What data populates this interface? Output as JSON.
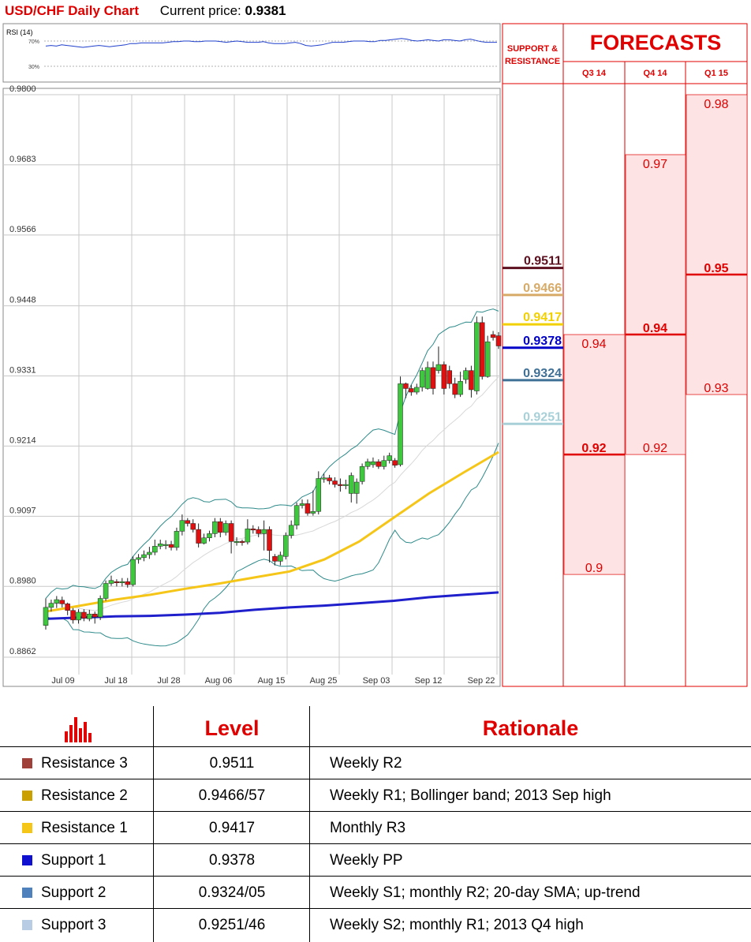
{
  "header": {
    "title": "USD/CHF Daily Chart",
    "price_label": "Current price:",
    "price": "0.9381"
  },
  "rsi": {
    "label": "RSI (14)",
    "levels": [
      "70%",
      "30%"
    ],
    "values": [
      62,
      63,
      62,
      64,
      63,
      62,
      61,
      60,
      61,
      62,
      63,
      62,
      61,
      62,
      63,
      64,
      66,
      66,
      67,
      67,
      67,
      67,
      67,
      68,
      69,
      69,
      70,
      70,
      69,
      69,
      70,
      70,
      70,
      69,
      68,
      69,
      70,
      69,
      68,
      68,
      68,
      69,
      67,
      66,
      66,
      66,
      67,
      68,
      66,
      63,
      62,
      63,
      64,
      66,
      68,
      68,
      68,
      69,
      70,
      70,
      70,
      69,
      69,
      71,
      71,
      72,
      73,
      74,
      73,
      71,
      70,
      71,
      72,
      71,
      70,
      72,
      72,
      71,
      70,
      72,
      73,
      71,
      69,
      68,
      68,
      68
    ]
  },
  "chart_data": {
    "type": "candlestick",
    "title": "USD/CHF Daily Chart",
    "y_ticks": [
      "0.9800",
      "0.9683",
      "0.9566",
      "0.9448",
      "0.9331",
      "0.9214",
      "0.9097",
      "0.8980",
      "0.8862"
    ],
    "ylim": [
      0.8862,
      0.98
    ],
    "x_ticks": [
      "Jul 09",
      "Jul 18",
      "Jul 28",
      "Aug 06",
      "Aug 15",
      "Aug 25",
      "Sep 03",
      "Sep 12",
      "Sep 22"
    ],
    "grid": true,
    "candles": [
      [
        0.8915,
        0.8945,
        0.8908,
        0.896
      ],
      [
        0.8945,
        0.8952,
        0.8938,
        0.8958
      ],
      [
        0.8952,
        0.8958,
        0.8944,
        0.8964
      ],
      [
        0.8957,
        0.8951,
        0.8945,
        0.8963
      ],
      [
        0.8951,
        0.894,
        0.8932,
        0.8953
      ],
      [
        0.894,
        0.8924,
        0.8918,
        0.8944
      ],
      [
        0.8924,
        0.8937,
        0.8918,
        0.8942
      ],
      [
        0.8937,
        0.8927,
        0.8922,
        0.8942
      ],
      [
        0.8926,
        0.8934,
        0.8922,
        0.8941
      ],
      [
        0.8934,
        0.8929,
        0.8918,
        0.8938
      ],
      [
        0.8929,
        0.896,
        0.8924,
        0.8965
      ],
      [
        0.896,
        0.8985,
        0.8956,
        0.899
      ],
      [
        0.8985,
        0.899,
        0.8981,
        0.8998
      ],
      [
        0.8988,
        0.8986,
        0.898,
        0.8992
      ],
      [
        0.8986,
        0.8988,
        0.898,
        0.8994
      ],
      [
        0.8988,
        0.8983,
        0.8978,
        0.8994
      ],
      [
        0.8983,
        0.9025,
        0.898,
        0.903
      ],
      [
        0.9025,
        0.9028,
        0.9018,
        0.9034
      ],
      [
        0.9028,
        0.9033,
        0.9022,
        0.904
      ],
      [
        0.9033,
        0.9037,
        0.9026,
        0.9046
      ],
      [
        0.9037,
        0.9047,
        0.9032,
        0.9058
      ],
      [
        0.9047,
        0.9051,
        0.9042,
        0.9058
      ],
      [
        0.9048,
        0.905,
        0.9042,
        0.9057
      ],
      [
        0.905,
        0.9045,
        0.904,
        0.9056
      ],
      [
        0.9045,
        0.9072,
        0.904,
        0.9078
      ],
      [
        0.9072,
        0.909,
        0.9065,
        0.91
      ],
      [
        0.909,
        0.9085,
        0.908,
        0.9094
      ],
      [
        0.9085,
        0.9075,
        0.907,
        0.9092
      ],
      [
        0.9075,
        0.9052,
        0.9045,
        0.9085
      ],
      [
        0.9052,
        0.9061,
        0.905,
        0.9068
      ],
      [
        0.9061,
        0.9068,
        0.9055,
        0.9073
      ],
      [
        0.9068,
        0.9088,
        0.9062,
        0.9094
      ],
      [
        0.9088,
        0.907,
        0.9062,
        0.9094
      ],
      [
        0.907,
        0.9085,
        0.9065,
        0.909
      ],
      [
        0.9085,
        0.9055,
        0.9035,
        0.909
      ],
      [
        0.9055,
        0.9055,
        0.9048,
        0.9062
      ],
      [
        0.9055,
        0.9054,
        0.9048,
        0.9058
      ],
      [
        0.9054,
        0.9076,
        0.905,
        0.9092
      ],
      [
        0.9076,
        0.9075,
        0.9068,
        0.9082
      ],
      [
        0.9075,
        0.9068,
        0.9062,
        0.908
      ],
      [
        0.9068,
        0.9075,
        0.904,
        0.909
      ],
      [
        0.9075,
        0.904,
        0.902,
        0.908
      ],
      [
        0.903,
        0.9022,
        0.9015,
        0.9034
      ],
      [
        0.9022,
        0.9032,
        0.9015,
        0.9038
      ],
      [
        0.903,
        0.9065,
        0.9025,
        0.907
      ],
      [
        0.9065,
        0.9082,
        0.906,
        0.909
      ],
      [
        0.9082,
        0.9115,
        0.9075,
        0.912
      ],
      [
        0.9115,
        0.9118,
        0.911,
        0.9125
      ],
      [
        0.9118,
        0.9102,
        0.9098,
        0.9125
      ],
      [
        0.9102,
        0.9105,
        0.9098,
        0.914
      ],
      [
        0.9105,
        0.916,
        0.91,
        0.9172
      ],
      [
        0.916,
        0.9161,
        0.9153,
        0.9168
      ],
      [
        0.9161,
        0.9156,
        0.915,
        0.9166
      ],
      [
        0.9156,
        0.915,
        0.9145,
        0.9162
      ],
      [
        0.915,
        0.9148,
        0.9138,
        0.916
      ],
      [
        0.9148,
        0.915,
        0.9142,
        0.9158
      ],
      [
        0.9135,
        0.9165,
        0.912,
        0.917
      ],
      [
        0.9135,
        0.9154,
        0.9118,
        0.916
      ],
      [
        0.9155,
        0.918,
        0.915,
        0.9185
      ],
      [
        0.918,
        0.9188,
        0.9175,
        0.9193
      ],
      [
        0.9183,
        0.9188,
        0.9178,
        0.9195
      ],
      [
        0.9188,
        0.918,
        0.9176,
        0.9192
      ],
      [
        0.918,
        0.919,
        0.9175,
        0.9198
      ],
      [
        0.919,
        0.9198,
        0.9185,
        0.9203
      ],
      [
        0.919,
        0.9182,
        0.9178,
        0.9194
      ],
      [
        0.9183,
        0.9318,
        0.918,
        0.933
      ],
      [
        0.9318,
        0.931,
        0.9294,
        0.932
      ],
      [
        0.931,
        0.9304,
        0.9298,
        0.9316
      ],
      [
        0.9304,
        0.9312,
        0.93,
        0.9318
      ],
      [
        0.9312,
        0.934,
        0.9305,
        0.9345
      ],
      [
        0.931,
        0.9345,
        0.9308,
        0.9355
      ],
      [
        0.9345,
        0.931,
        0.93,
        0.9355
      ],
      [
        0.934,
        0.935,
        0.9335,
        0.938
      ],
      [
        0.935,
        0.931,
        0.93,
        0.9355
      ],
      [
        0.934,
        0.9318,
        0.931,
        0.9348
      ],
      [
        0.9318,
        0.93,
        0.9294,
        0.9328
      ],
      [
        0.93,
        0.9322,
        0.9296,
        0.9338
      ],
      [
        0.9325,
        0.934,
        0.9318,
        0.9345
      ],
      [
        0.934,
        0.9308,
        0.9295,
        0.9348
      ],
      [
        0.9306,
        0.942,
        0.93,
        0.943
      ],
      [
        0.942,
        0.933,
        0.9325,
        0.943
      ],
      [
        0.933,
        0.9388,
        0.9328,
        0.9398
      ],
      [
        0.94,
        0.9395,
        0.939,
        0.9406
      ],
      [
        0.9398,
        0.9381,
        0.9376,
        0.9404
      ]
    ],
    "series": [
      {
        "name": "",
        "color": "#1f1fcc",
        "values": [
          0.8926,
          0.8928,
          0.893,
          0.8931,
          0.8933,
          0.8936,
          0.8941,
          0.8945,
          0.8948,
          0.8952,
          0.8956,
          0.8962,
          0.8966,
          0.897
        ]
      },
      {
        "name": "",
        "color": "#f5c518",
        "values": [
          0.8938,
          0.8948,
          0.8958,
          0.8966,
          0.8976,
          0.8985,
          0.8995,
          0.9005,
          0.9025,
          0.9055,
          0.9095,
          0.9135,
          0.917,
          0.9204
        ]
      }
    ],
    "levels": [
      {
        "value": 0.9511,
        "label": "0.9511",
        "color": "#5c0f1e"
      },
      {
        "value": 0.9466,
        "label": "0.9466",
        "color": "#d7aa67"
      },
      {
        "value": 0.9417,
        "label": "0.9417",
        "color": "#f2d000"
      },
      {
        "value": 0.9378,
        "label": "0.9378",
        "color": "#0000c8"
      },
      {
        "value": 0.9324,
        "label": "0.9324",
        "color": "#3f7096"
      },
      {
        "value": 0.9251,
        "label": "0.9251",
        "color": "#a8d0d8"
      }
    ]
  },
  "forecasts": {
    "title": "FORECASTS",
    "sr_title_line1": "SUPPORT &",
    "sr_title_line2": "RESISTANCE",
    "columns": [
      {
        "label": "Q3 14",
        "high": 0.94,
        "mid": 0.92,
        "low": 0.9,
        "high_label": "0.94",
        "mid_label": "0.92",
        "low_label": "0.9"
      },
      {
        "label": "Q4 14",
        "high": 0.97,
        "mid": 0.94,
        "low": 0.92,
        "high_label": "0.97",
        "mid_label": "0.94",
        "low_label": "0.92"
      },
      {
        "label": "Q1 15",
        "high": 0.98,
        "mid": 0.95,
        "low": 0.93,
        "high_label": "0.98",
        "mid_label": "0.95",
        "low_label": "0.93"
      }
    ]
  },
  "table": {
    "headers": {
      "level": "Level",
      "rationale": "Rationale"
    },
    "rows": [
      {
        "name": "Resistance 3",
        "level": "0.9511",
        "rationale": "Weekly R2",
        "color": "#a0403b"
      },
      {
        "name": "Resistance 2",
        "level": "0.9466/57",
        "rationale": "Weekly R1; Bollinger band; 2013 Sep high",
        "color": "#c9a000"
      },
      {
        "name": "Resistance 1",
        "level": "0.9417",
        "rationale": "Monthly R3",
        "color": "#f5c518"
      },
      {
        "name": "Support 1",
        "level": "0.9378",
        "rationale": "Weekly PP",
        "color": "#1010d0"
      },
      {
        "name": "Support 2",
        "level": "0.9324/05",
        "rationale": "Weekly S1; monthly R2; 20-day SMA; up-trend",
        "color": "#4f81bd"
      },
      {
        "name": "Support 3",
        "level": "0.9251/46",
        "rationale": "Weekly S2; monthly R1; 2013 Q4 high",
        "color": "#b8cce4"
      }
    ]
  },
  "colors": {
    "red": "#e00000",
    "up": "#3ec83e",
    "down": "#e01010",
    "forecast_fill": "#fde3e3"
  }
}
